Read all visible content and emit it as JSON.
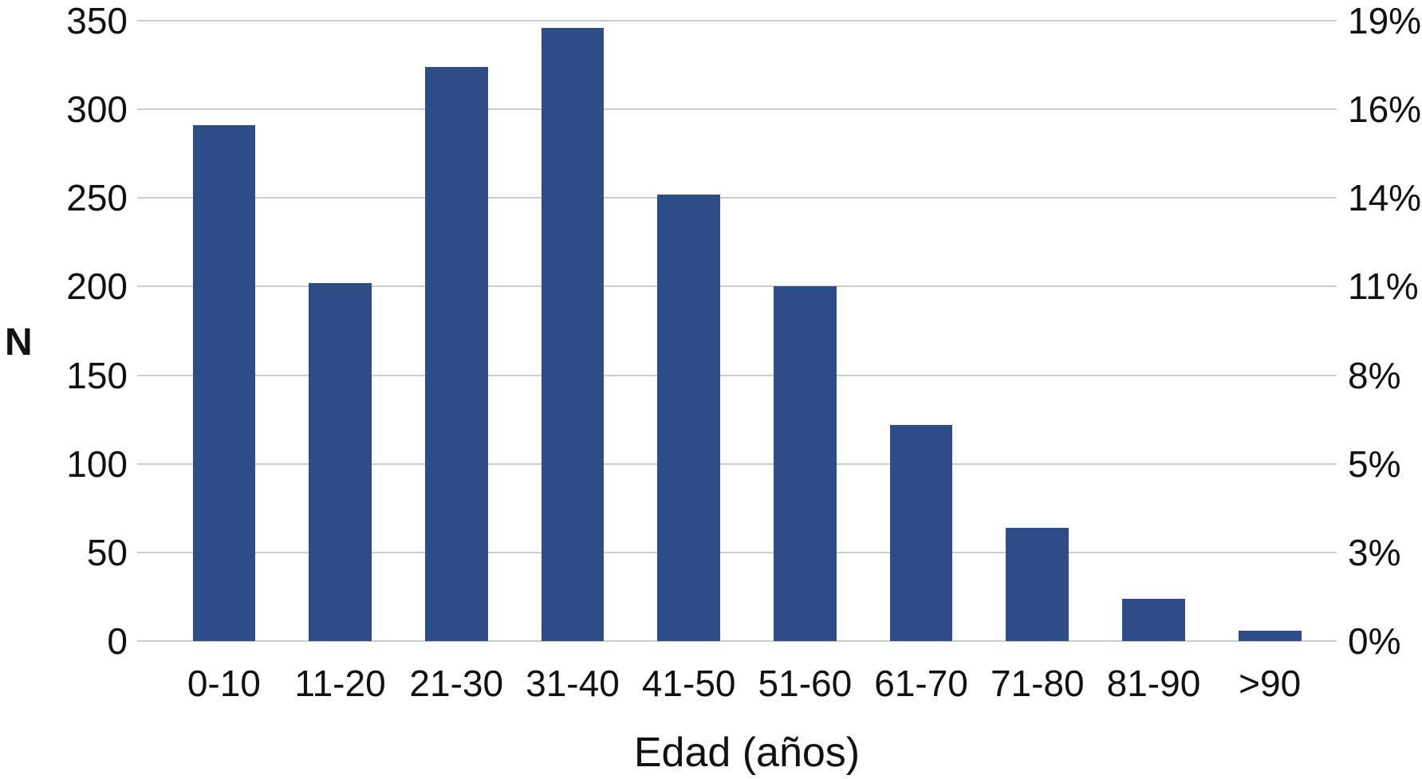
{
  "chart_data": {
    "type": "bar",
    "title": "",
    "categories": [
      "0-10",
      "11-20",
      "21-30",
      "31-40",
      "41-50",
      "51-60",
      "61-70",
      "71-80",
      "81-90",
      ">90"
    ],
    "values": [
      291,
      202,
      324,
      346,
      252,
      200,
      122,
      64,
      24,
      6
    ],
    "xlabel": "Edad (años)",
    "ylabel_left": "N",
    "ylim": [
      0,
      350
    ],
    "left_axis_ticks": [
      "350",
      "300",
      "250",
      "200",
      "150",
      "100",
      "50",
      "0"
    ],
    "left_axis_tick_values": [
      350,
      300,
      250,
      200,
      150,
      100,
      50,
      0
    ],
    "right_axis_ticks": [
      "19%",
      "16%",
      "14%",
      "11%",
      "8%",
      "5%",
      "3%",
      "0%"
    ],
    "grid": "horizontal-only",
    "legend": "none",
    "series_name": "N",
    "bar_color": "#2E4C87",
    "gridline_color": "#CCCCCC",
    "text_color": "#111111",
    "background_color": "#FFFFFF"
  }
}
